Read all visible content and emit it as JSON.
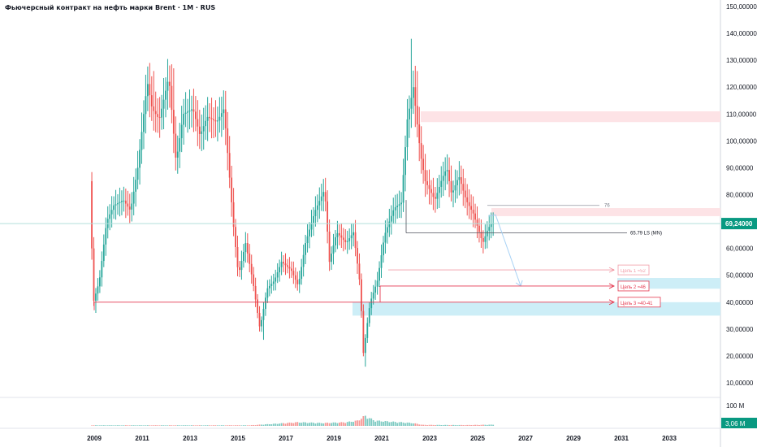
{
  "title": "Фьючерсный контракт на нефть марки Brent · 1M · RUS",
  "colors": {
    "up": "#26a69a",
    "down": "#ef5350",
    "target_red": "#e53950",
    "target_zone_blue": "#cdeef7",
    "resistance_zone": "#fde3e6",
    "arrow": "#a8d2f5",
    "price_badge": "#089981",
    "grid_line": "#b2dfdb"
  },
  "price_badge": "69,24000",
  "volume_label": "100 M",
  "volume_badge": "3,06 M",
  "chart_data": {
    "type": "candlestick",
    "ylim": [
      0,
      150
    ],
    "y_ticks": [
      "150,00000",
      "140,00000",
      "130,00000",
      "120,00000",
      "110,00000",
      "100,00000",
      "90,00000",
      "80,00000",
      "70,00000",
      "60,00000",
      "50,00000",
      "40,00000",
      "30,00000",
      "20,00000",
      "10,00000"
    ],
    "x_ticks": [
      "2009",
      "2011",
      "2013",
      "2015",
      "2017",
      "2019",
      "2021",
      "2023",
      "2025",
      "2027",
      "2029",
      "2031",
      "2033"
    ],
    "last_price": 69.24,
    "price_path": [
      [
        2008.9,
        85
      ],
      [
        2009.05,
        40
      ],
      [
        2009.3,
        48
      ],
      [
        2009.6,
        70
      ],
      [
        2009.9,
        76
      ],
      [
        2010.3,
        78
      ],
      [
        2010.6,
        74
      ],
      [
        2010.9,
        90
      ],
      [
        2011.3,
        122
      ],
      [
        2011.5,
        112
      ],
      [
        2011.8,
        108
      ],
      [
        2012.2,
        124
      ],
      [
        2012.5,
        92
      ],
      [
        2012.8,
        110
      ],
      [
        2013.2,
        112
      ],
      [
        2013.5,
        102
      ],
      [
        2013.8,
        109
      ],
      [
        2014.2,
        107
      ],
      [
        2014.5,
        112
      ],
      [
        2014.9,
        68
      ],
      [
        2015.1,
        50
      ],
      [
        2015.4,
        62
      ],
      [
        2015.7,
        48
      ],
      [
        2016.0,
        30
      ],
      [
        2016.3,
        45
      ],
      [
        2016.6,
        48
      ],
      [
        2016.9,
        55
      ],
      [
        2017.3,
        52
      ],
      [
        2017.6,
        46
      ],
      [
        2017.9,
        62
      ],
      [
        2018.3,
        74
      ],
      [
        2018.7,
        82
      ],
      [
        2018.9,
        55
      ],
      [
        2019.2,
        66
      ],
      [
        2019.6,
        62
      ],
      [
        2019.9,
        66
      ],
      [
        2020.2,
        45
      ],
      [
        2020.3,
        20
      ],
      [
        2020.6,
        40
      ],
      [
        2020.9,
        48
      ],
      [
        2021.2,
        65
      ],
      [
        2021.6,
        75
      ],
      [
        2021.9,
        77
      ],
      [
        2022.15,
        108
      ],
      [
        2022.4,
        120
      ],
      [
        2022.7,
        95
      ],
      [
        2022.9,
        85
      ],
      [
        2023.3,
        78
      ],
      [
        2023.6,
        86
      ],
      [
        2023.8,
        90
      ],
      [
        2024.0,
        80
      ],
      [
        2024.3,
        87
      ],
      [
        2024.6,
        78
      ],
      [
        2024.9,
        73
      ],
      [
        2025.3,
        62
      ],
      [
        2025.5,
        67
      ],
      [
        2025.65,
        69.24
      ]
    ],
    "highs": [
      [
        2022.2,
        138
      ],
      [
        2022.45,
        126
      ],
      [
        2011.5,
        126
      ],
      [
        2012.3,
        127
      ]
    ],
    "lows": [
      [
        2020.3,
        16
      ],
      [
        2016.05,
        26
      ],
      [
        2009.05,
        36
      ]
    ],
    "volume_path": [
      [
        2008.9,
        3
      ],
      [
        2015.5,
        3
      ],
      [
        2016.5,
        10
      ],
      [
        2017.5,
        18
      ],
      [
        2018.5,
        14
      ],
      [
        2019.5,
        18
      ],
      [
        2020.0,
        26
      ],
      [
        2020.3,
        50
      ],
      [
        2020.7,
        26
      ],
      [
        2021.5,
        20
      ],
      [
        2022.3,
        14
      ],
      [
        2022.7,
        5
      ],
      [
        2024.5,
        4
      ],
      [
        2025.65,
        6
      ]
    ],
    "annotations": {
      "level_76": {
        "value": 76,
        "label": "76"
      },
      "level_ls": {
        "value": 65.79,
        "label": "65.79 LS (MN)"
      },
      "targets": [
        {
          "label": "Цель 1 ≈52",
          "value": 52
        },
        {
          "label": "Цель 2 ≈46",
          "value": 46
        },
        {
          "label": "Цель 3 ≈40-41",
          "value": 40
        }
      ],
      "resistance_zones": [
        [
          107,
          111
        ],
        [
          72,
          75
        ]
      ],
      "target_zones": [
        [
          45,
          49
        ],
        [
          35,
          40
        ]
      ]
    }
  }
}
